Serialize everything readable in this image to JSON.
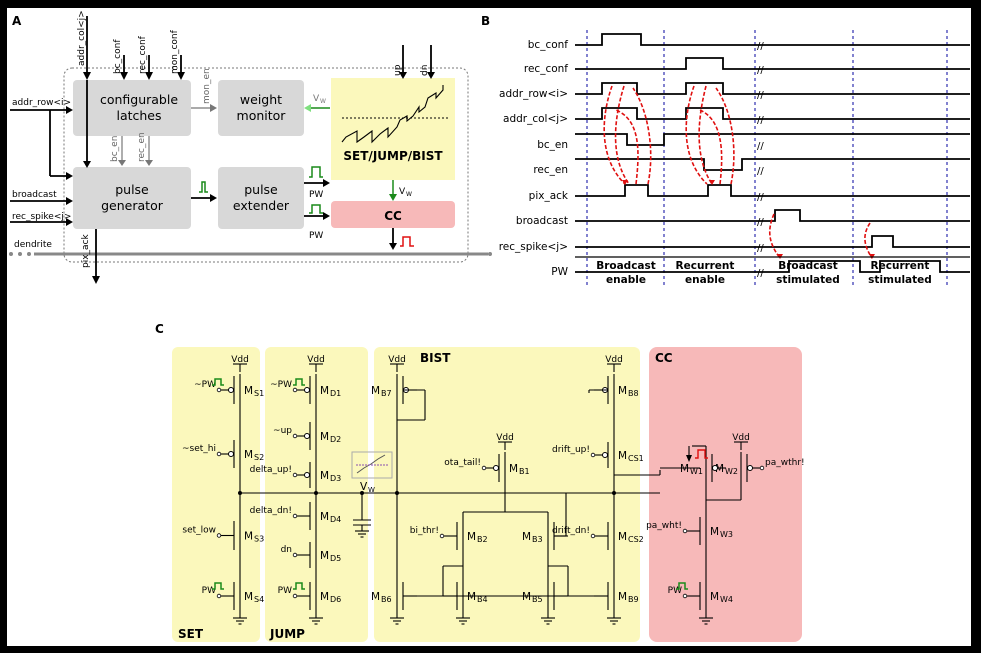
{
  "panel_a": {
    "label": "A",
    "blocks": {
      "latches_l1": "configurable",
      "latches_l2": "latches",
      "monitor_l1": "weight",
      "monitor_l2": "monitor",
      "generator_l1": "pulse",
      "generator_l2": "generator",
      "extender_l1": "pulse",
      "extender_l2": "extender",
      "setjump": "SET/JUMP/BIST",
      "cc": "CC"
    },
    "signals": {
      "addr_col": "addr_col<j>",
      "bc_conf": "bc_conf",
      "rec_conf": "rec_conf",
      "mon_conf": "mon_conf",
      "addr_row": "addr_row<i>",
      "broadcast": "broadcast",
      "rec_spike": "rec_spike<j>",
      "dendrite": "dendrite",
      "pix_ack": "pix_ack",
      "bc_en": "bc_en",
      "rec_en": "rec_en",
      "mon_en": "mon_en",
      "vw": "V",
      "vw_sub": "W",
      "pw1": "PW",
      "pw2": "PW",
      "up": "up",
      "dn": "dn"
    }
  },
  "panel_b": {
    "label": "B",
    "signals": [
      "bc_conf",
      "rec_conf",
      "addr_row<i>",
      "addr_col<j>",
      "bc_en",
      "rec_en",
      "pix_ack",
      "broadcast",
      "rec_spike<j>",
      "PW"
    ],
    "phases": [
      {
        "l1": "Broadcast",
        "l2": "enable"
      },
      {
        "l1": "Recurrent",
        "l2": "enable"
      },
      {
        "l1": "Broadcast",
        "l2": "stimulated"
      },
      {
        "l1": "Recurrent",
        "l2": "stimulated"
      }
    ]
  },
  "panel_c": {
    "label": "C",
    "sections": {
      "set": "SET",
      "jump": "JUMP",
      "bist": "BIST",
      "cc": "CC"
    },
    "vdd": "Vdd",
    "set": {
      "pw_bar": "~PW",
      "set_hi": "~set_hi",
      "set_low": "set_low",
      "pw": "PW",
      "m1": "M",
      "m1s": "S1",
      "m2": "M",
      "m2s": "S2",
      "m3": "M",
      "m3s": "S3",
      "m4": "M",
      "m4s": "S4"
    },
    "jump": {
      "pw_bar": "~PW",
      "up": "~up",
      "delta_up": "delta_up!",
      "delta_dn": "delta_dn!",
      "dn": "dn",
      "pw": "PW",
      "d1": "D1",
      "d2": "D2",
      "d3": "D3",
      "d4": "D4",
      "d5": "D5",
      "d6": "D6",
      "vw": "V",
      "vw_sub": "W"
    },
    "bist": {
      "ota_tail": "ota_tail!",
      "bi_thr": "bi_thr!",
      "drift_up": "drift_up!",
      "drift_dn": "drift_dn!",
      "b1": "B1",
      "b2": "B2",
      "b3": "B3",
      "b4": "B4",
      "b5": "B5",
      "b6": "B6",
      "b7": "B7",
      "b8": "B8",
      "b9": "B9",
      "cs1": "CS1",
      "cs2": "CS2"
    },
    "cc": {
      "pa_wthr": "pa_wthr!",
      "pa_wht": "pa_wht!",
      "pw": "PW",
      "w1": "W1",
      "w2": "W2",
      "w3": "W3",
      "w4": "W4"
    },
    "m": "M"
  },
  "colors": {
    "yellow": "#fbf8bc",
    "pink": "#f7b9b9",
    "gray_block": "#d8d8d8",
    "arrow_red": "#e01010",
    "tick_blue": "#1d1da8",
    "pulse_green": "#1a8a1a"
  }
}
